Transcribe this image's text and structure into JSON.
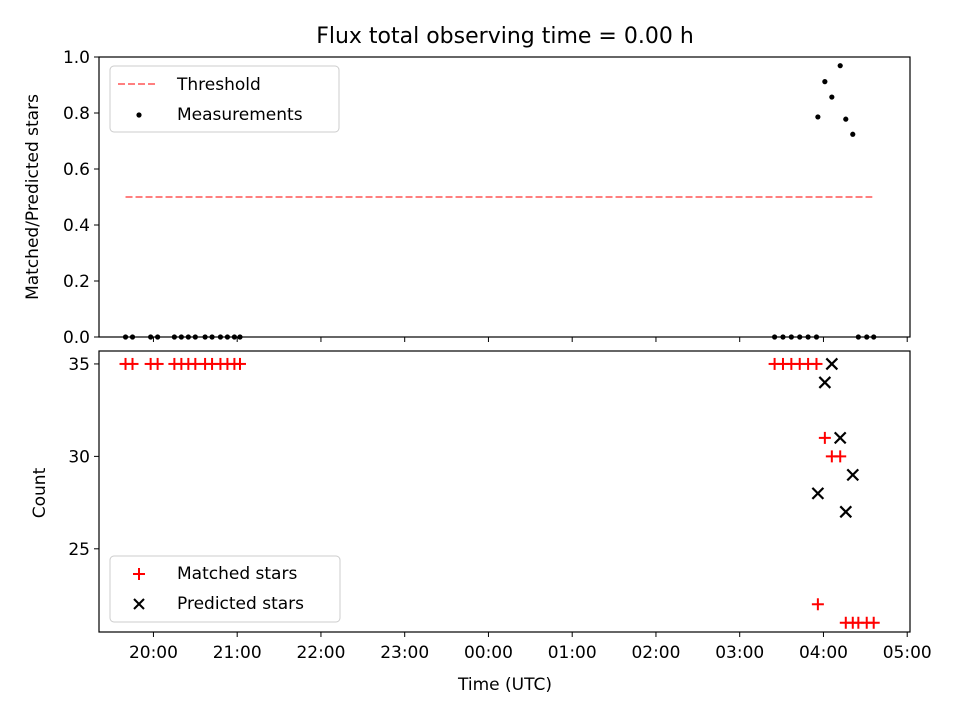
{
  "figure": {
    "title": "Flux total observing time = 0.00 h"
  },
  "chart_data": [
    {
      "type": "scatter",
      "title": "Flux total observing time = 0.00 h",
      "xlabel": "",
      "ylabel": "Matched/Predicted stars",
      "x_unit": "hours after 19:00 UTC (axis shows clock time)",
      "xlim": [
        "19:21",
        "05:02"
      ],
      "ylim": [
        0,
        1.0
      ],
      "yticks": [
        "0.0",
        "0.2",
        "0.4",
        "0.6",
        "0.8",
        "1.0"
      ],
      "legend_position": "upper-left",
      "grid": false,
      "threshold": {
        "name": "Threshold",
        "value": 0.5,
        "x_range": [
          "19:40",
          "04:35"
        ],
        "color": "#ff7f7f",
        "style": "dashed"
      },
      "series": [
        {
          "name": "Measurements",
          "color": "#000000",
          "marker": "dot",
          "points": [
            [
              "19:40",
              0.0
            ],
            [
              "19:45",
              0.0
            ],
            [
              "19:58",
              0.0
            ],
            [
              "20:03",
              0.0
            ],
            [
              "20:15",
              0.0
            ],
            [
              "20:20",
              0.0
            ],
            [
              "20:25",
              0.0
            ],
            [
              "20:30",
              0.0
            ],
            [
              "20:37",
              0.0
            ],
            [
              "20:42",
              0.0
            ],
            [
              "20:48",
              0.0
            ],
            [
              "20:53",
              0.0
            ],
            [
              "20:58",
              0.0
            ],
            [
              "21:02",
              0.0
            ],
            [
              "03:25",
              0.0
            ],
            [
              "03:31",
              0.0
            ],
            [
              "03:37",
              0.0
            ],
            [
              "03:43",
              0.0
            ],
            [
              "03:49",
              0.0
            ],
            [
              "03:55",
              0.0
            ],
            [
              "03:56",
              0.786
            ],
            [
              "04:01",
              0.912
            ],
            [
              "04:06",
              0.857
            ],
            [
              "04:12",
              0.969
            ],
            [
              "04:16",
              0.778
            ],
            [
              "04:21",
              0.724
            ],
            [
              "04:25",
              0.0
            ],
            [
              "04:31",
              0.0
            ],
            [
              "04:36",
              0.0
            ]
          ]
        }
      ]
    },
    {
      "type": "scatter",
      "title": "",
      "xlabel": "Time (UTC)",
      "ylabel": "Count",
      "x_unit": "hours after 19:00 UTC (axis shows clock time)",
      "xlim": [
        "19:21",
        "05:02"
      ],
      "ylim": [
        20.5,
        35.7
      ],
      "xticks": [
        "20:00",
        "21:00",
        "22:00",
        "23:00",
        "00:00",
        "01:00",
        "02:00",
        "03:00",
        "04:00",
        "05:00"
      ],
      "yticks": [
        "25",
        "30",
        "35"
      ],
      "legend_position": "lower-left",
      "grid": false,
      "series": [
        {
          "name": "Matched stars",
          "color": "#ff0000",
          "marker": "plus",
          "points": [
            [
              "19:40",
              35
            ],
            [
              "19:45",
              35
            ],
            [
              "19:58",
              35
            ],
            [
              "20:03",
              35
            ],
            [
              "20:15",
              35
            ],
            [
              "20:20",
              35
            ],
            [
              "20:25",
              35
            ],
            [
              "20:30",
              35
            ],
            [
              "20:37",
              35
            ],
            [
              "20:42",
              35
            ],
            [
              "20:48",
              35
            ],
            [
              "20:53",
              35
            ],
            [
              "20:58",
              35
            ],
            [
              "21:02",
              35
            ],
            [
              "03:25",
              35
            ],
            [
              "03:31",
              35
            ],
            [
              "03:37",
              35
            ],
            [
              "03:43",
              35
            ],
            [
              "03:49",
              35
            ],
            [
              "03:55",
              35
            ],
            [
              "03:56",
              22
            ],
            [
              "04:01",
              31
            ],
            [
              "04:06",
              30
            ],
            [
              "04:12",
              30
            ],
            [
              "04:16",
              21
            ],
            [
              "04:21",
              21
            ],
            [
              "04:25",
              21
            ],
            [
              "04:31",
              21
            ],
            [
              "04:36",
              21
            ]
          ]
        },
        {
          "name": "Predicted stars",
          "color": "#000000",
          "marker": "cross",
          "points": [
            [
              "03:56",
              28
            ],
            [
              "04:01",
              34
            ],
            [
              "04:06",
              35
            ],
            [
              "04:12",
              31
            ],
            [
              "04:16",
              27
            ],
            [
              "04:21",
              29
            ]
          ]
        }
      ]
    }
  ]
}
